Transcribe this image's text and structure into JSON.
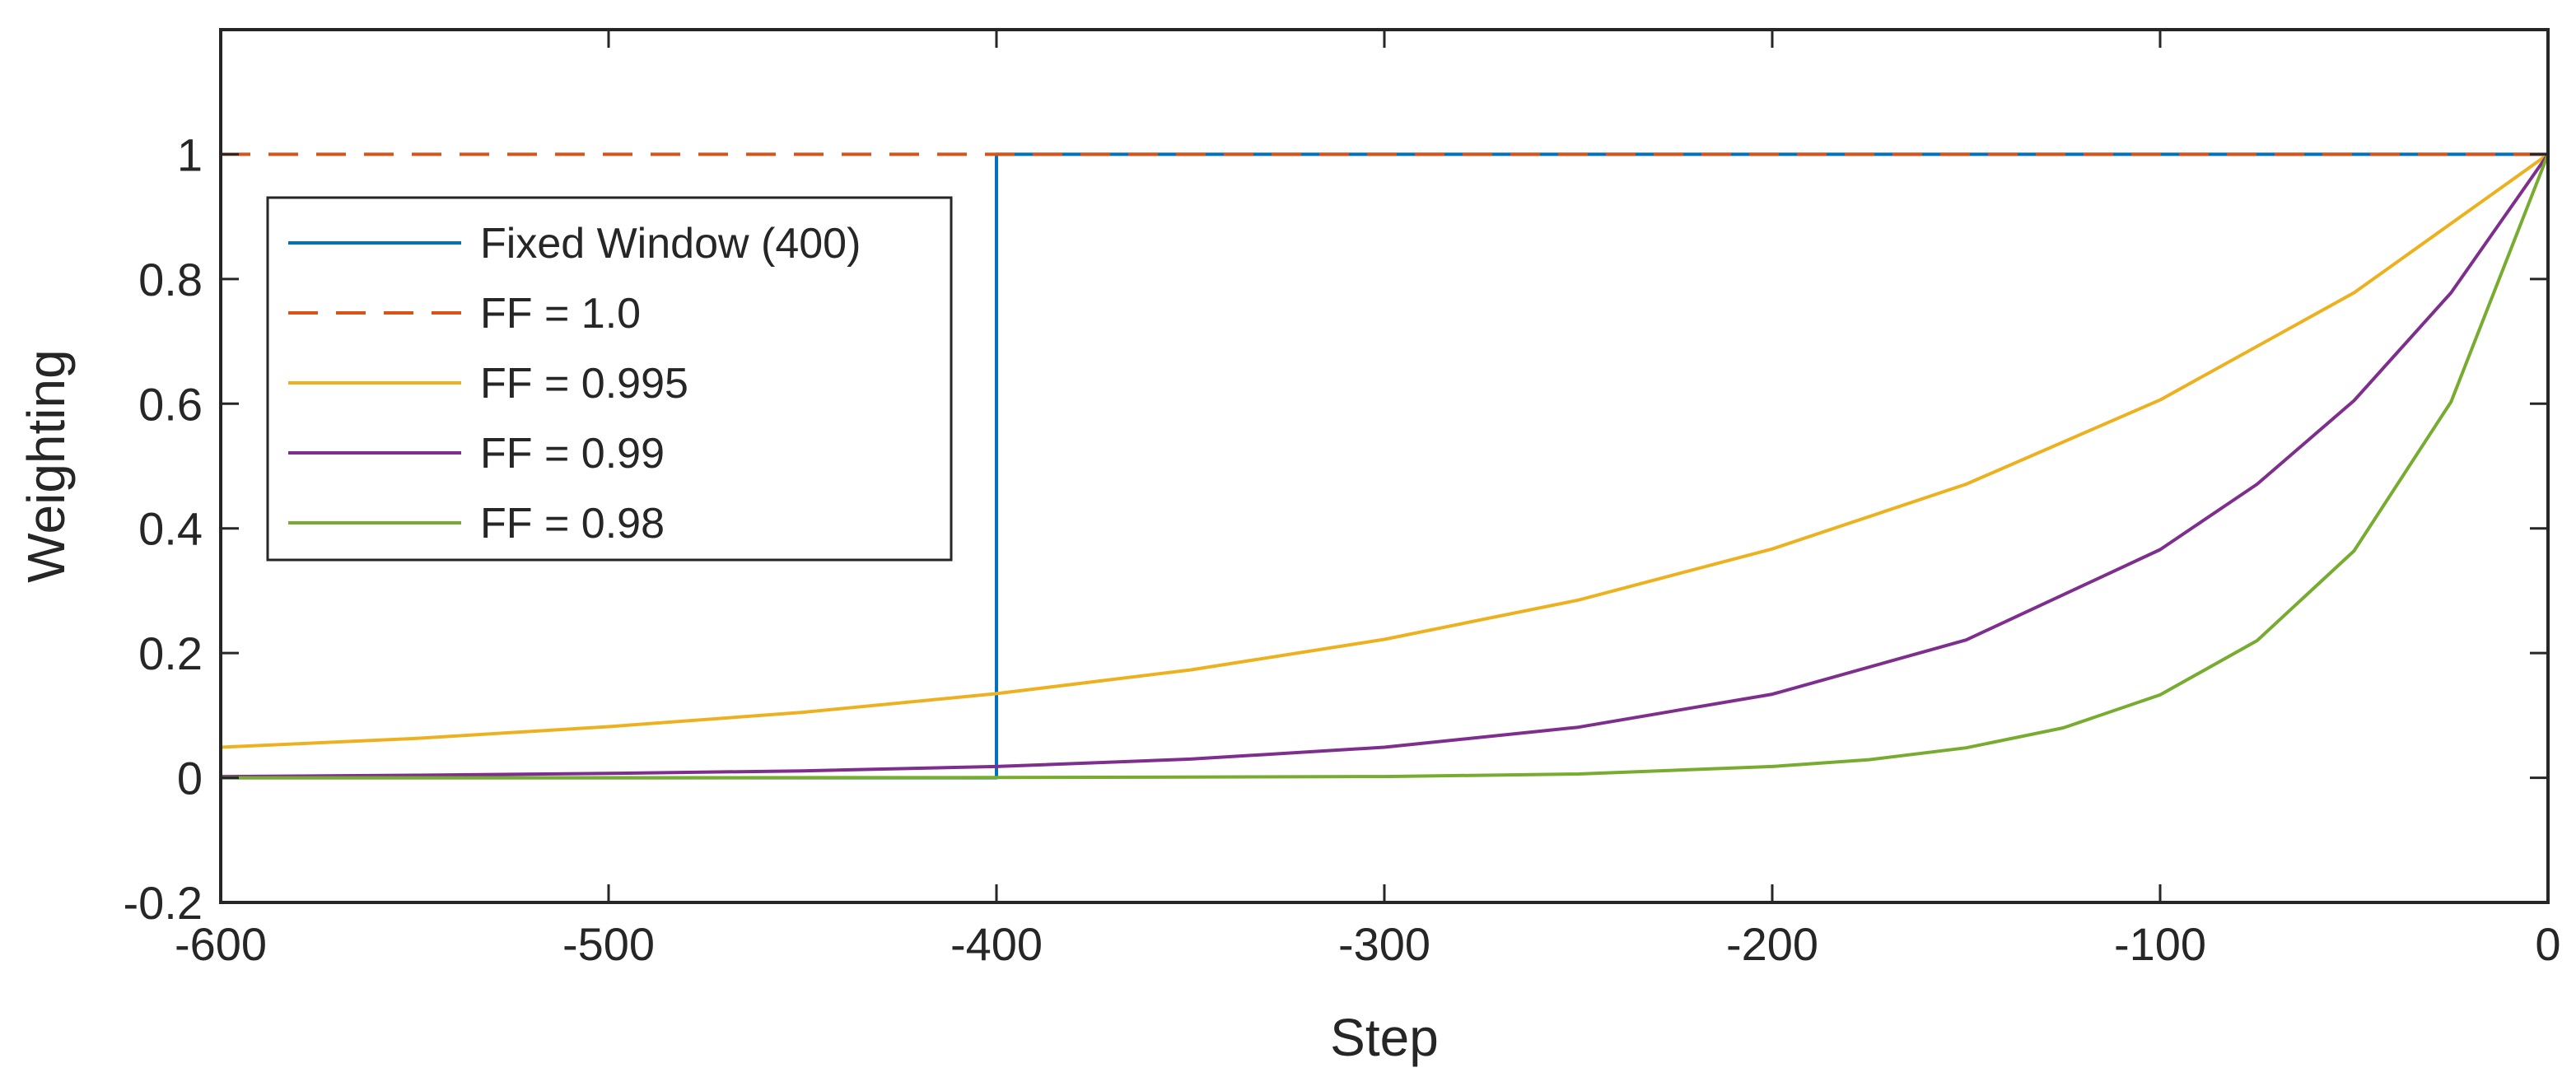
{
  "chart_data": {
    "type": "line",
    "title": "",
    "xlabel": "Step",
    "ylabel": "Weighting",
    "xlim": [
      -600,
      0
    ],
    "ylim": [
      -0.2,
      1.2
    ],
    "xticks": [
      -600,
      -500,
      -400,
      -300,
      -200,
      -100,
      0
    ],
    "xtick_labels": [
      "-600",
      "-500",
      "-400",
      "-300",
      "-200",
      "-100",
      "0"
    ],
    "yticks": [
      -0.2,
      0,
      0.2,
      0.4,
      0.6,
      0.8,
      1
    ],
    "ytick_labels": [
      "-0.2",
      "0",
      "0.2",
      "0.4",
      "0.6",
      "0.8",
      "1"
    ],
    "grid": false,
    "legend_position": "upper-left",
    "series": [
      {
        "name": "Fixed Window (400)",
        "color": "#0072BD",
        "style": "solid",
        "x": [
          -600,
          -400,
          -400,
          0
        ],
        "y": [
          0,
          0,
          1,
          1
        ]
      },
      {
        "name": "FF = 1.0",
        "color": "#D95319",
        "style": "dashed",
        "x": [
          -600,
          -500,
          -400,
          -300,
          -200,
          -100,
          0
        ],
        "y": [
          1,
          1,
          1,
          1,
          1,
          1,
          1
        ]
      },
      {
        "name": "FF = 0.995",
        "color": "#EDB120",
        "style": "solid",
        "x": [
          -600,
          -550,
          -500,
          -450,
          -400,
          -350,
          -300,
          -250,
          -200,
          -150,
          -100,
          -50,
          0
        ],
        "y": [
          0.049,
          0.063,
          0.082,
          0.105,
          0.135,
          0.173,
          0.222,
          0.285,
          0.367,
          0.471,
          0.606,
          0.778,
          1.0
        ]
      },
      {
        "name": "FF = 0.99",
        "color": "#7E2F8E",
        "style": "solid",
        "x": [
          -600,
          -550,
          -500,
          -450,
          -400,
          -350,
          -300,
          -250,
          -200,
          -150,
          -100,
          -75,
          -50,
          -25,
          0
        ],
        "y": [
          0.002,
          0.004,
          0.007,
          0.011,
          0.018,
          0.03,
          0.049,
          0.081,
          0.134,
          0.221,
          0.366,
          0.471,
          0.605,
          0.778,
          1.0
        ]
      },
      {
        "name": "FF = 0.98",
        "color": "#77AC30",
        "style": "solid",
        "x": [
          -600,
          -500,
          -400,
          -300,
          -250,
          -200,
          -175,
          -150,
          -125,
          -100,
          -75,
          -50,
          -25,
          0
        ],
        "y": [
          0.0,
          0.0,
          0.0003,
          0.002,
          0.006,
          0.018,
          0.029,
          0.048,
          0.08,
          0.133,
          0.22,
          0.364,
          0.603,
          1.0
        ]
      }
    ]
  }
}
